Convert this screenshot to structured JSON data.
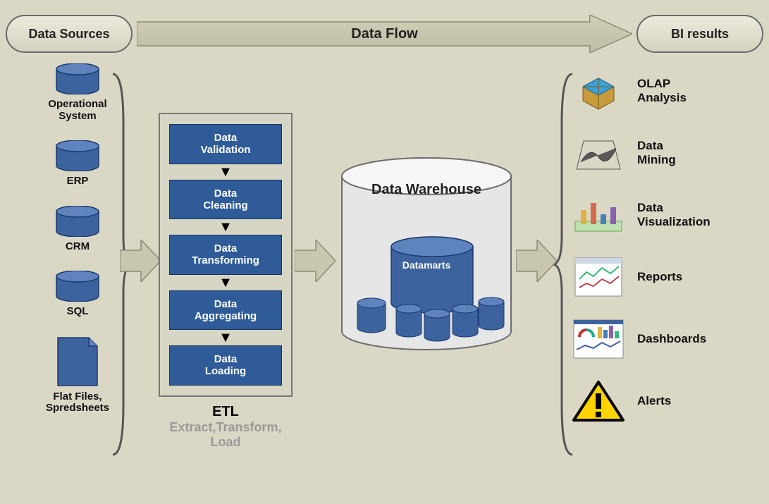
{
  "colors": {
    "background": "#dad8c5",
    "pill_border": "#6b6b6b",
    "pill_fill_top": "#eceadb",
    "pill_fill_bottom": "#d4d2be",
    "arrow_fill": "#c9c6af",
    "arrow_stroke": "#8d8b77",
    "cylinder_fill": "#3d639f",
    "cylinder_top": "#5f83bd",
    "cylinder_stroke": "#1c3b6e",
    "etl_step_fill": "#2f5c99",
    "etl_step_border": "#16345c",
    "etl_box_border": "#777777",
    "etl_box_fill": "#d7d5c4",
    "dw_cyl_fill": "#e8e8e8",
    "dw_cyl_stroke": "#6e6e6e",
    "brace_stroke": "#555555",
    "subtitle_gray": "#999999",
    "alert_yellow": "#ffd400",
    "alert_border": "#000000"
  },
  "header": {
    "sources_label": "Data Sources",
    "flow_label": "Data Flow",
    "results_label": "BI results"
  },
  "sources": [
    {
      "type": "cylinder",
      "label": "Operational\nSystem"
    },
    {
      "type": "cylinder",
      "label": "ERP"
    },
    {
      "type": "cylinder",
      "label": "CRM"
    },
    {
      "type": "cylinder",
      "label": "SQL"
    },
    {
      "type": "file",
      "label": "Flat Files,\nSpredsheets"
    }
  ],
  "etl": {
    "steps": [
      "Data\nValidation",
      "Data\nCleaning",
      "Data\nTransforming",
      "Data\nAggregating",
      "Data\nLoading"
    ],
    "title": "ETL",
    "subtitle": "Extract,Transform,\nLoad"
  },
  "warehouse": {
    "label": "Data Warehouse",
    "datamarts_label": "Datamarts"
  },
  "bi_results": [
    {
      "icon": "olap",
      "label": "OLAP\nAnalysis"
    },
    {
      "icon": "surface",
      "label": "Data\nMining"
    },
    {
      "icon": "viz",
      "label": "Data\nVisualization"
    },
    {
      "icon": "report",
      "label": "Reports"
    },
    {
      "icon": "dashboard",
      "label": "Dashboards"
    },
    {
      "icon": "alert",
      "label": "Alerts"
    }
  ]
}
